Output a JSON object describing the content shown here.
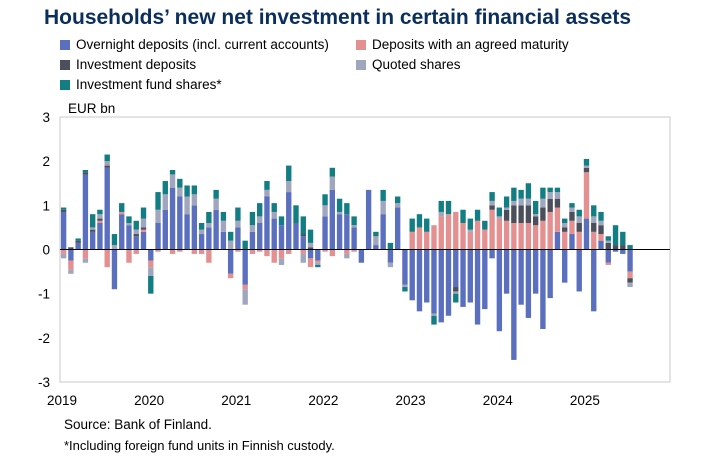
{
  "chart_data": {
    "type": "bar",
    "stacked": true,
    "title": "Households’ new net investment in certain financial assets",
    "ylabel": "EUR bn",
    "ylim": [
      -3,
      3
    ],
    "yticks": [
      3,
      2,
      1,
      0,
      -1,
      -2,
      -3
    ],
    "xlim": [
      2019,
      2026
    ],
    "xticks": [
      "2019",
      "2020",
      "2021",
      "2022",
      "2023",
      "2024",
      "2025"
    ],
    "grid": false,
    "legend_position": "top",
    "source": "Source: Bank of Finland.",
    "footnote": "*Including foreign fund units in Finnish custody.",
    "series": [
      {
        "name": "Overnight deposits (incl. current accounts)",
        "color": "#5b6fbf",
        "values": [
          0.85,
          -0.25,
          0.15,
          1.7,
          0.4,
          0.6,
          1.85,
          -0.9,
          0.8,
          0.55,
          0.3,
          0.4,
          -0.25,
          0.6,
          0.9,
          1.4,
          1.2,
          0.8,
          1.0,
          0.35,
          0.5,
          0.9,
          0.4,
          -0.55,
          0.5,
          -0.8,
          0.4,
          0.6,
          1.2,
          0.7,
          0.55,
          1.3,
          0.6,
          0.3,
          -0.2,
          -0.25,
          0.75,
          1.35,
          0.8,
          0.8,
          0.5,
          -0.3,
          1.35,
          0.1,
          0.8,
          -0.3,
          0.95,
          -0.8,
          -1.15,
          -1.4,
          -1.2,
          -1.45,
          -1.65,
          -1.5,
          -0.85,
          -1.3,
          -1.2,
          -1.7,
          -1.35,
          -0.2,
          -1.85,
          -1.0,
          -2.5,
          -1.25,
          -1.55,
          -1.0,
          -1.8,
          -1.1,
          0.4,
          -0.75,
          0.35,
          -0.95,
          0.7,
          -1.4,
          0.2,
          -0.3,
          -0.05,
          -0.1,
          -0.5
        ]
      },
      {
        "name": "Deposits with an agreed maturity",
        "color": "#e49090",
        "values": [
          -0.1,
          -0.2,
          0,
          -0.2,
          0,
          0.05,
          -0.4,
          0,
          0.05,
          -0.3,
          -0.1,
          0.05,
          -0.15,
          -0.05,
          0,
          -0.1,
          -0.05,
          0,
          -0.1,
          -0.1,
          -0.3,
          0,
          0,
          -0.1,
          -0.05,
          -0.1,
          -0.1,
          -0.05,
          -0.15,
          -0.3,
          -0.2,
          -0.1,
          0,
          -0.1,
          -0.2,
          -0.05,
          -0.05,
          -0.15,
          0,
          -0.1,
          -0.05,
          0,
          0,
          0,
          0,
          0,
          0,
          0,
          0.4,
          0.5,
          0.4,
          0.55,
          0.75,
          0.8,
          0.85,
          0.6,
          0.4,
          0.65,
          0.45,
          0.9,
          0.7,
          0.65,
          0.6,
          0.6,
          0.6,
          0.55,
          0.65,
          0.85,
          0.55,
          0.4,
          0.3,
          0.4,
          1.05,
          0.4,
          0.15,
          -0.05,
          0,
          0,
          -0.15
        ]
      },
      {
        "name": "Investment deposits",
        "color": "#4a4f5b",
        "values": [
          0.05,
          0.05,
          0.05,
          0.05,
          0.05,
          0.05,
          0.05,
          0,
          0,
          0,
          0.05,
          0.05,
          0,
          0,
          0,
          0,
          0,
          0,
          0,
          0,
          0,
          0,
          0,
          0,
          0,
          0,
          0,
          0,
          0,
          0,
          0,
          0,
          0,
          0.05,
          0.05,
          0,
          0,
          0,
          0,
          0,
          0,
          0,
          0,
          0,
          0,
          0,
          0,
          0,
          0,
          0,
          0,
          0,
          0,
          0,
          -0.1,
          0,
          0,
          0,
          0,
          0.1,
          0,
          0.25,
          0.4,
          0.4,
          0.4,
          0.2,
          0.3,
          0.3,
          0.2,
          0.1,
          0.2,
          0.2,
          0.1,
          0.2,
          0.2,
          0.15,
          0.1,
          0.1,
          -0.1
        ]
      },
      {
        "name": "Quoted shares",
        "color": "#a0a6bd",
        "values": [
          -0.1,
          -0.1,
          0,
          -0.1,
          0.05,
          0.1,
          0.1,
          0.1,
          0,
          0.05,
          0.1,
          0.2,
          -0.2,
          0.3,
          0.35,
          0.3,
          0.2,
          0.4,
          0.25,
          0.1,
          0.1,
          0.25,
          0.25,
          0.2,
          0.15,
          -0.35,
          0.15,
          0.15,
          0.15,
          0.15,
          -0.15,
          0.25,
          0,
          -0.2,
          0.1,
          -0.05,
          0.25,
          0.3,
          0.05,
          -0.1,
          0.05,
          0,
          0,
          0.2,
          0.3,
          -0.1,
          0.1,
          -0.05,
          0,
          0,
          0,
          -0.05,
          0.1,
          0,
          -0.05,
          0,
          0.05,
          0,
          0,
          0.1,
          0.05,
          0.05,
          0.1,
          0.15,
          0.15,
          0.05,
          0.2,
          0.15,
          0.15,
          0.1,
          0.1,
          0.15,
          0.05,
          0.15,
          0.1,
          0.05,
          0,
          0,
          -0.1
        ]
      },
      {
        "name": "Investment fund shares*",
        "color": "#127e83",
        "values": [
          0.05,
          0,
          0.05,
          0.05,
          0.3,
          0.1,
          0.15,
          0.25,
          0.2,
          0.15,
          0.2,
          0.25,
          -0.4,
          0.4,
          0.3,
          0.1,
          0.2,
          0.25,
          0.2,
          0.15,
          0.25,
          0.2,
          0.2,
          0.2,
          0.3,
          0.2,
          0.3,
          0.3,
          0.2,
          0.2,
          0.2,
          0.35,
          0.4,
          0.4,
          0.3,
          -0.05,
          0.25,
          0.2,
          0.3,
          0.25,
          0.2,
          0,
          0,
          0.1,
          0.25,
          0.15,
          0.15,
          -0.1,
          0.3,
          0.3,
          0.3,
          -0.2,
          0.25,
          0.3,
          -0.2,
          0.3,
          0.25,
          0.25,
          0.2,
          0.2,
          0.2,
          0.25,
          0.3,
          0.2,
          0.35,
          0.3,
          0.25,
          0.1,
          0.1,
          0.1,
          0.1,
          0.15,
          0.15,
          0.25,
          0.2,
          0.1,
          0.45,
          0.3,
          0.1
        ]
      }
    ]
  }
}
